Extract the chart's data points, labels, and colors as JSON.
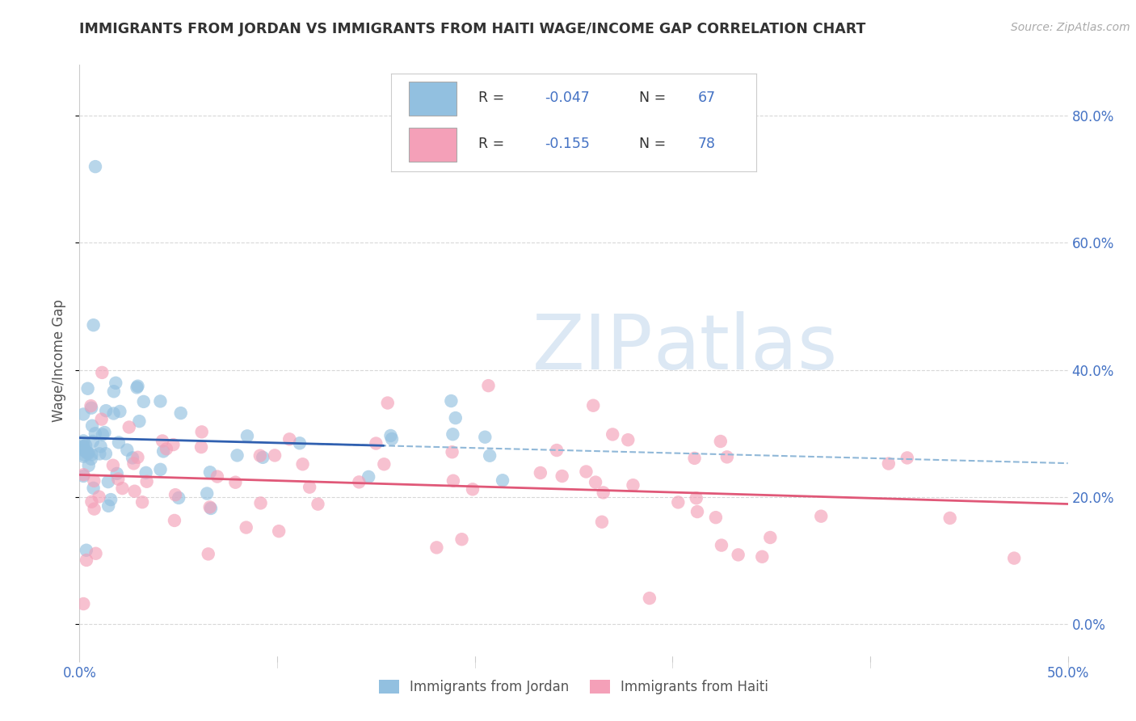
{
  "title": "IMMIGRANTS FROM JORDAN VS IMMIGRANTS FROM HAITI WAGE/INCOME GAP CORRELATION CHART",
  "source": "Source: ZipAtlas.com",
  "ylabel": "Wage/Income Gap",
  "xmin": 0.0,
  "xmax": 0.5,
  "ymin": -0.05,
  "ymax": 0.88,
  "yticks": [
    0.0,
    0.2,
    0.4,
    0.6,
    0.8
  ],
  "ytick_labels": [
    "0.0%",
    "20.0%",
    "40.0%",
    "60.0%",
    "80.0%"
  ],
  "xtick_positions": [
    0.0,
    0.1,
    0.2,
    0.3,
    0.4,
    0.5
  ],
  "jordan_color": "#92c0e0",
  "haiti_color": "#f4a0b8",
  "jordan_line_color": "#3060b0",
  "haiti_line_color": "#e05878",
  "trend_dash_color": "#90b8d8",
  "R_jordan": -0.047,
  "N_jordan": 67,
  "R_haiti": -0.155,
  "N_haiti": 78,
  "background_color": "#ffffff",
  "grid_color": "#d8d8d8",
  "watermark_color": "#dce8f4",
  "jordan_intercept": 0.285,
  "jordan_slope": -0.12,
  "haiti_intercept": 0.228,
  "haiti_slope": -0.1,
  "dash_intercept": 0.27,
  "dash_slope": -0.22
}
